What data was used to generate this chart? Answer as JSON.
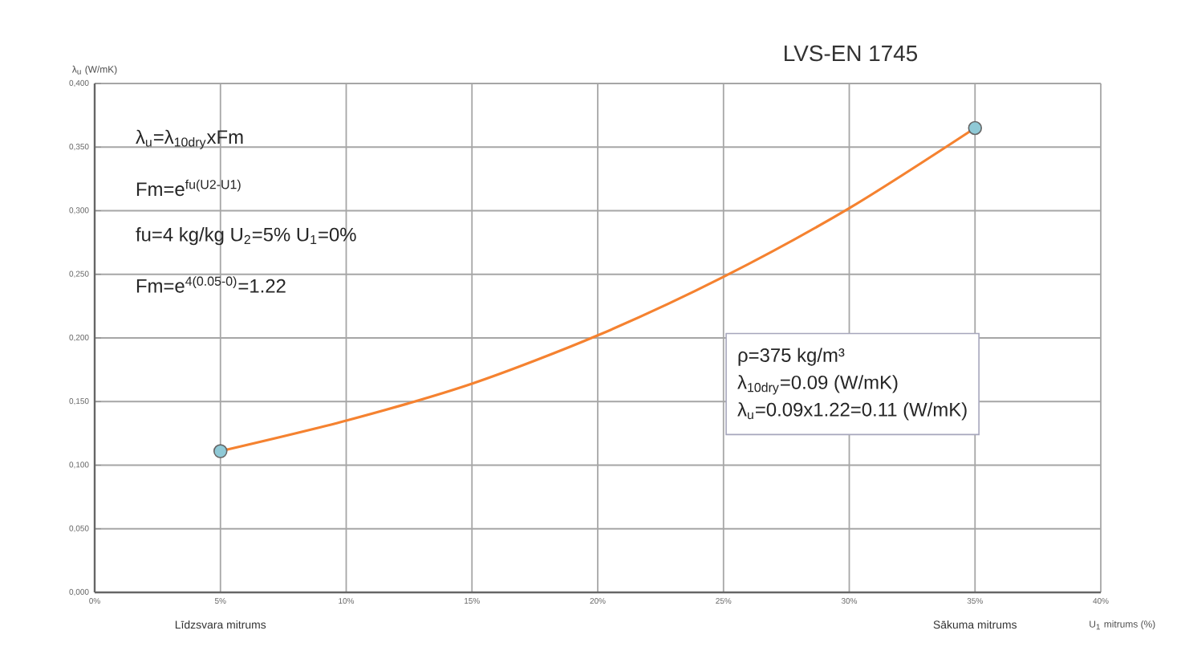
{
  "chart_data": {
    "type": "line",
    "title": "LVS-EN 1745",
    "xlabel": "U$_{1}$ mitrums (%)",
    "ylabel": "λ$_{u}$ (W/mK)",
    "series": [
      {
        "color": "#f58230",
        "x": [
          5,
          10,
          15,
          20,
          25,
          30,
          35
        ],
        "values": [
          0.111,
          0.135,
          0.164,
          0.202,
          0.248,
          0.302,
          0.365
        ],
        "marker": "none"
      },
      {
        "type": "scatter",
        "color": "#8fc9d6",
        "x": [
          5,
          35
        ],
        "values": [
          0.111,
          0.365
        ],
        "marker": "circle"
      }
    ],
    "xlim": [
      0,
      40
    ],
    "xticks": [
      {
        "value": 0,
        "label": "0%"
      },
      {
        "value": 5,
        "label": "5%"
      },
      {
        "value": 10,
        "label": "10%"
      },
      {
        "value": 15,
        "label": "15%"
      },
      {
        "value": 20,
        "label": "20%"
      },
      {
        "value": 25,
        "label": "25%"
      },
      {
        "value": 30,
        "label": "30%"
      },
      {
        "value": 35,
        "label": "35%"
      },
      {
        "value": 40,
        "label": "40%"
      }
    ],
    "ylim": [
      0,
      0.4
    ],
    "yticks": [
      {
        "value": 0,
        "label": "0,000"
      },
      {
        "value": 0.05,
        "label": "0,050"
      },
      {
        "value": 0.1,
        "label": "0,100"
      },
      {
        "value": 0.15,
        "label": "0,150"
      },
      {
        "value": 0.2,
        "label": "0,200"
      },
      {
        "value": 0.25,
        "label": "0,250"
      },
      {
        "value": 0.3,
        "label": "0,300"
      },
      {
        "value": 0.35,
        "label": "0,350"
      },
      {
        "value": 0.4,
        "label": "0,400"
      }
    ],
    "grid": true,
    "annotations": [
      "λ$_{u}$=λ$_{10dry}$xFm",
      "Fm=e$^{fu(U2-U1)}$",
      "fu=4 kg/kg   U$_{2}$=5%   U$_{1}$=0%",
      "Fm=e$^{4(0.05-0)}$=1.22",
      "ρ=375 kg/m³",
      "λ$_{10dry}$=0.09  (W/mK)",
      "λ$_{u}$=0.09x1.22=0.11  (W/mK)",
      "Līdzsvara mitrums",
      "Sākuma mitrums"
    ]
  }
}
